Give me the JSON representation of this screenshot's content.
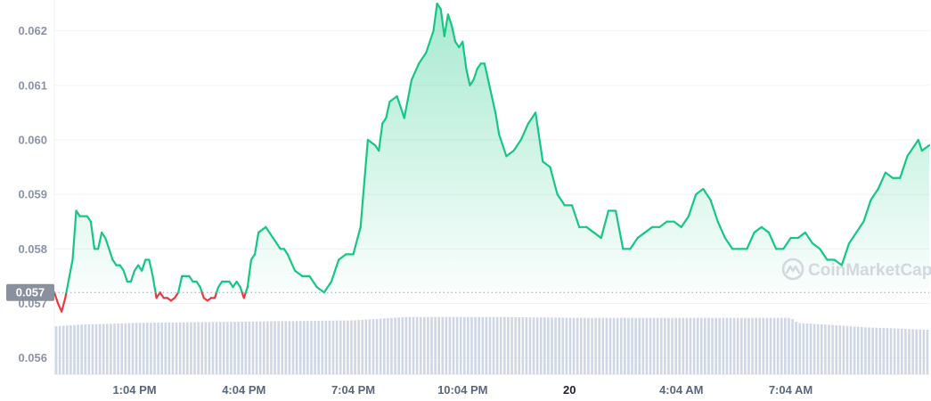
{
  "watermark": {
    "text": "CoinMarketCap",
    "icon": "coinmarketcap-logo-icon"
  },
  "current_price_label": "0.057",
  "colors": {
    "up": "#16c784",
    "down": "#ea3943",
    "volume": "#cfd6e4",
    "label_bg": "#8a919e",
    "grid": "#eff2f5"
  },
  "chart_data": {
    "type": "area",
    "title": "",
    "xlabel": "",
    "ylabel": "",
    "ylim": [
      0.0557,
      0.0625
    ],
    "yticks": [
      "0.056",
      "0.057",
      "0.058",
      "0.059",
      "0.060",
      "0.061",
      "0.062"
    ],
    "ytick_values": [
      0.056,
      0.057,
      0.058,
      0.059,
      0.06,
      0.061,
      0.062
    ],
    "xticks": [
      {
        "label": "1:04 PM",
        "t": 2,
        "bold": false
      },
      {
        "label": "4:04 PM",
        "t": 5,
        "bold": false
      },
      {
        "label": "7:04 PM",
        "t": 8,
        "bold": false
      },
      {
        "label": "10:04 PM",
        "t": 11,
        "bold": false
      },
      {
        "label": "20",
        "t": 13.933,
        "bold": true
      },
      {
        "label": "4:04 AM",
        "t": 17,
        "bold": false
      },
      {
        "label": "7:04 AM",
        "t": 20,
        "bold": false
      }
    ],
    "x_range": [
      -0.2,
      23.8
    ],
    "baseline": 0.0572,
    "series": [
      {
        "t": [
          -0.2,
          -0.1,
          0,
          0.1,
          0.3,
          0.4,
          0.5,
          0.7,
          0.8,
          0.9,
          1.0,
          1.1,
          1.2,
          1.3,
          1.4,
          1.5,
          1.6,
          1.7,
          1.8,
          1.9,
          2.0,
          2.1,
          2.2,
          2.3,
          2.4,
          2.5,
          2.6,
          2.7,
          2.8,
          2.9,
          3.0,
          3.1,
          3.2,
          3.3,
          3.4,
          3.5,
          3.6,
          3.7,
          3.8,
          3.9,
          4.0,
          4.1,
          4.2,
          4.3,
          4.4,
          4.5,
          4.6,
          4.7,
          4.8,
          4.9,
          5.0,
          5.1,
          5.2,
          5.3,
          5.4,
          5.6,
          5.8,
          6.0,
          6.1,
          6.2,
          6.4,
          6.6,
          6.8,
          7.0,
          7.2,
          7.4,
          7.6,
          7.8,
          8.0,
          8.2,
          8.4,
          8.6,
          8.7,
          8.8,
          8.9,
          9.0,
          9.2,
          9.4,
          9.6,
          9.8,
          10.0,
          10.2,
          10.3,
          10.4,
          10.5,
          10.6,
          10.7,
          10.8,
          10.9,
          11.0,
          11.1,
          11.2,
          11.3,
          11.4,
          11.5,
          11.6,
          11.8,
          11.9,
          12.0,
          12.2,
          12.4,
          12.6,
          12.8,
          13.0,
          13.2,
          13.4,
          13.6,
          13.8,
          14.0,
          14.2,
          14.4,
          14.6,
          14.8,
          15.0,
          15.2,
          15.4,
          15.6,
          15.8,
          16.0,
          16.2,
          16.4,
          16.6,
          16.8,
          17.0,
          17.2,
          17.4,
          17.6,
          17.8,
          18.0,
          18.2,
          18.4,
          18.6,
          18.8,
          19.0,
          19.2,
          19.4,
          19.6,
          19.8,
          20.0,
          20.2,
          20.4,
          20.6,
          20.8,
          21.0,
          21.2,
          21.4,
          21.6,
          21.8,
          22.0,
          22.2,
          22.4,
          22.6,
          22.8,
          23.0,
          23.2,
          23.3,
          23.4,
          23.5,
          23.6,
          23.8
        ],
        "values": [
          0.0572,
          0.057,
          0.05685,
          0.0571,
          0.0578,
          0.0587,
          0.0586,
          0.0586,
          0.0585,
          0.058,
          0.058,
          0.0583,
          0.0582,
          0.058,
          0.0578,
          0.0577,
          0.0577,
          0.0576,
          0.0574,
          0.0574,
          0.0576,
          0.0577,
          0.0576,
          0.0578,
          0.0578,
          0.0575,
          0.0571,
          0.0572,
          0.0571,
          0.0571,
          0.05705,
          0.0571,
          0.0572,
          0.0575,
          0.0575,
          0.0575,
          0.0574,
          0.0574,
          0.0573,
          0.0571,
          0.05705,
          0.0571,
          0.0571,
          0.0573,
          0.0574,
          0.0574,
          0.0574,
          0.0573,
          0.0574,
          0.0573,
          0.0571,
          0.0573,
          0.0578,
          0.0579,
          0.0583,
          0.0584,
          0.0582,
          0.058,
          0.058,
          0.0579,
          0.0576,
          0.0575,
          0.0575,
          0.0573,
          0.0572,
          0.0574,
          0.0578,
          0.0579,
          0.0579,
          0.0584,
          0.06,
          0.0599,
          0.0598,
          0.0603,
          0.0604,
          0.0607,
          0.0608,
          0.0604,
          0.0611,
          0.0614,
          0.0616,
          0.062,
          0.0625,
          0.0624,
          0.0619,
          0.0623,
          0.0621,
          0.0618,
          0.0617,
          0.0618,
          0.0613,
          0.061,
          0.0611,
          0.0613,
          0.0614,
          0.0614,
          0.0608,
          0.0605,
          0.0601,
          0.0597,
          0.0598,
          0.06,
          0.0603,
          0.0605,
          0.0596,
          0.0595,
          0.059,
          0.0588,
          0.0588,
          0.0584,
          0.0584,
          0.0583,
          0.0582,
          0.0587,
          0.0587,
          0.058,
          0.058,
          0.0582,
          0.0583,
          0.0584,
          0.0584,
          0.0585,
          0.0585,
          0.0584,
          0.0586,
          0.059,
          0.0591,
          0.0589,
          0.0585,
          0.0582,
          0.058,
          0.058,
          0.058,
          0.0583,
          0.0584,
          0.0583,
          0.058,
          0.058,
          0.0582,
          0.0582,
          0.0583,
          0.0581,
          0.058,
          0.0578,
          0.0578,
          0.0577,
          0.0581,
          0.0583,
          0.0585,
          0.0589,
          0.0591,
          0.0594,
          0.0593,
          0.0593,
          0.0597,
          0.0598,
          0.0599,
          0.06,
          0.0598,
          0.0599
        ]
      }
    ],
    "volume": {
      "t_start": -0.2,
      "t_end": 23.8,
      "bars": 240,
      "levels": [
        [
          -0.2,
          0.56
        ],
        [
          0.5,
          0.58
        ],
        [
          2.0,
          0.6
        ],
        [
          6.0,
          0.62
        ],
        [
          8.0,
          0.63
        ],
        [
          9.5,
          0.67
        ],
        [
          12.0,
          0.67
        ],
        [
          14.0,
          0.66
        ],
        [
          20.0,
          0.66
        ],
        [
          20.2,
          0.6
        ],
        [
          21.0,
          0.58
        ],
        [
          22.0,
          0.55
        ],
        [
          23.8,
          0.52
        ]
      ]
    }
  }
}
